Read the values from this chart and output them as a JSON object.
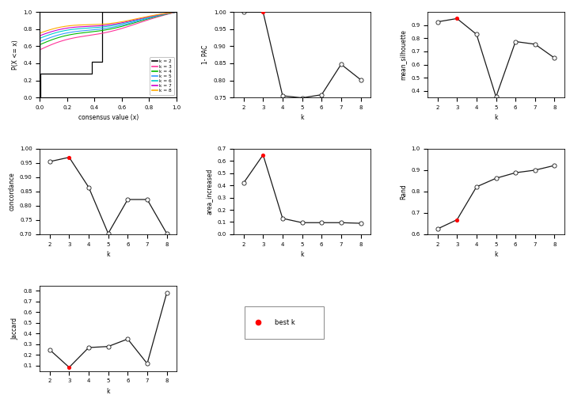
{
  "ecdf_colors": [
    "#000000",
    "#FF3399",
    "#00BB00",
    "#3399FF",
    "#00CCCC",
    "#CC00CC",
    "#FFAA00"
  ],
  "ecdf_labels": [
    "k = 2",
    "k = 3",
    "k = 4",
    "k = 5",
    "k = 6",
    "k = 7",
    "k = 8"
  ],
  "pac": {
    "k": [
      2,
      3,
      4,
      5,
      6,
      7,
      8
    ],
    "values": [
      1.0,
      1.0,
      0.755,
      0.749,
      0.758,
      0.847,
      0.802
    ],
    "best_k_idx": 1,
    "ylabel": "1- PAC",
    "ylim": [
      0.75,
      1.0
    ],
    "yticks": [
      0.75,
      0.8,
      0.85,
      0.9,
      0.95,
      1.0
    ]
  },
  "silhouette": {
    "k": [
      2,
      3,
      4,
      5,
      6,
      7,
      8
    ],
    "values": [
      0.925,
      0.95,
      0.83,
      0.355,
      0.775,
      0.755,
      0.65
    ],
    "best_k_idx": 1,
    "ylabel": "mean_silhouette",
    "ylim": [
      0.35,
      1.0
    ],
    "yticks": [
      0.4,
      0.5,
      0.6,
      0.7,
      0.8,
      0.9
    ]
  },
  "concordance": {
    "k": [
      2,
      3,
      4,
      5,
      6,
      7,
      8
    ],
    "values": [
      0.955,
      0.97,
      0.865,
      0.703,
      0.822,
      0.822,
      0.703
    ],
    "best_k_idx": 1,
    "ylabel": "concordance",
    "ylim": [
      0.7,
      1.0
    ],
    "yticks": [
      0.7,
      0.75,
      0.8,
      0.85,
      0.9,
      0.95,
      1.0
    ]
  },
  "area_increased": {
    "k": [
      2,
      3,
      4,
      5,
      6,
      7,
      8
    ],
    "values": [
      0.42,
      0.65,
      0.13,
      0.095,
      0.095,
      0.095,
      0.09
    ],
    "best_k_idx": 1,
    "ylabel": "area_increased",
    "ylim": [
      0.0,
      0.7
    ],
    "yticks": [
      0.0,
      0.1,
      0.2,
      0.3,
      0.4,
      0.5,
      0.6,
      0.7
    ]
  },
  "rand": {
    "k": [
      2,
      3,
      4,
      5,
      6,
      7,
      8
    ],
    "values": [
      0.625,
      0.668,
      0.822,
      0.862,
      0.888,
      0.9,
      0.922
    ],
    "best_k_idx": 1,
    "ylabel": "Rand",
    "ylim": [
      0.6,
      1.0
    ],
    "yticks": [
      0.6,
      0.7,
      0.8,
      0.9,
      1.0
    ]
  },
  "jaccard": {
    "k": [
      2,
      3,
      4,
      5,
      6,
      7,
      8
    ],
    "values": [
      0.25,
      0.085,
      0.27,
      0.28,
      0.35,
      0.12,
      0.78
    ],
    "best_k_idx": 1,
    "ylabel": "Jaccard",
    "ylim": [
      0.05,
      0.85
    ],
    "yticks": [
      0.1,
      0.2,
      0.3,
      0.4,
      0.5,
      0.6,
      0.7,
      0.8
    ]
  },
  "line_color": "#1a1a1a",
  "xlabel": "k",
  "bg": "#ffffff"
}
